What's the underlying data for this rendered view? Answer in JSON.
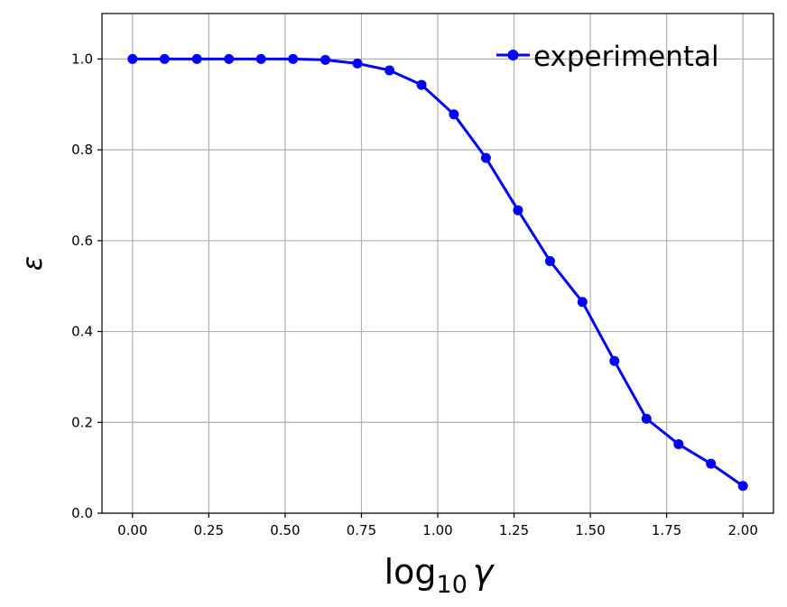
{
  "chart_data": {
    "type": "line",
    "title": "",
    "xlabel": {
      "main": "log",
      "sub": "10",
      "var": "γ"
    },
    "ylabel": "ε",
    "xlim": [
      -0.1,
      2.1
    ],
    "ylim": [
      0.0,
      1.1
    ],
    "xticks": [
      0.0,
      0.25,
      0.5,
      0.75,
      1.0,
      1.25,
      1.5,
      1.75,
      2.0
    ],
    "xtick_labels": [
      "0.00",
      "0.25",
      "0.50",
      "0.75",
      "1.00",
      "1.25",
      "1.50",
      "1.75",
      "2.00"
    ],
    "yticks": [
      0.0,
      0.2,
      0.4,
      0.6,
      0.8,
      1.0
    ],
    "ytick_labels": [
      "0.0",
      "0.2",
      "0.4",
      "0.6",
      "0.8",
      "1.0"
    ],
    "grid": true,
    "legend_position": "top-right",
    "series": [
      {
        "name": "experimental",
        "color": "#0000ff",
        "marker": "circle",
        "x": [
          0.0,
          0.105,
          0.211,
          0.316,
          0.421,
          0.526,
          0.632,
          0.737,
          0.842,
          0.947,
          1.053,
          1.158,
          1.263,
          1.368,
          1.474,
          1.579,
          1.684,
          1.789,
          1.895,
          2.0
        ],
        "y": [
          1.0,
          1.0,
          1.0,
          1.0,
          1.0,
          1.0,
          0.998,
          0.99,
          0.975,
          0.943,
          0.878,
          0.782,
          0.667,
          0.555,
          0.465,
          0.335,
          0.208,
          0.152,
          0.109,
          0.06
        ]
      }
    ]
  }
}
